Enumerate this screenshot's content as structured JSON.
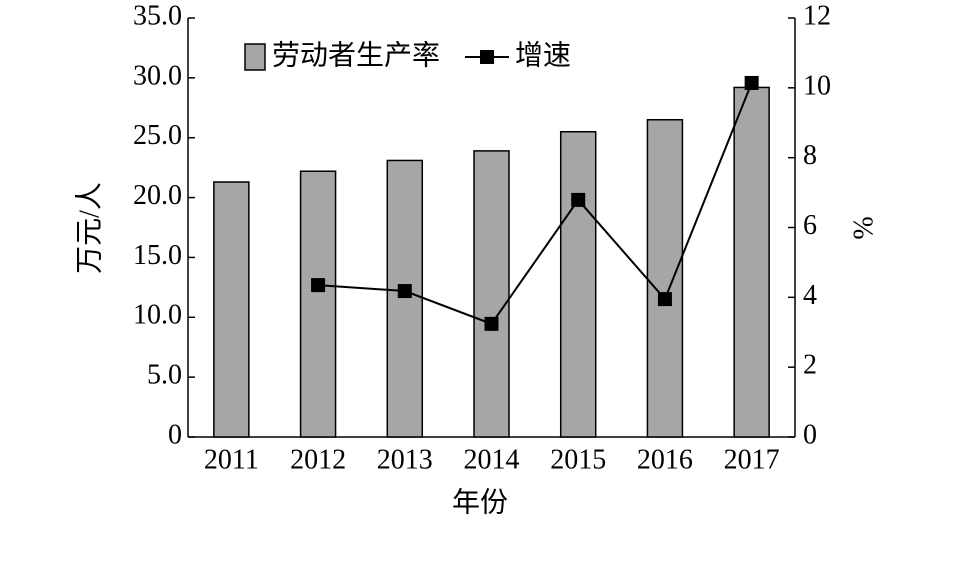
{
  "chart_data": {
    "type": "bar",
    "categories": [
      "2011",
      "2012",
      "2013",
      "2014",
      "2015",
      "2016",
      "2017"
    ],
    "series": [
      {
        "name": "劳动者生产率",
        "type": "bar",
        "color": "#a6a6a6",
        "values": [
          21.3,
          22.2,
          23.1,
          23.9,
          25.5,
          26.5,
          29.2
        ]
      },
      {
        "name": "增速",
        "type": "line",
        "color": "#000000",
        "axis": "y2",
        "values": [
          null,
          4.35,
          4.18,
          3.24,
          6.79,
          3.95,
          10.14
        ]
      }
    ],
    "ylim": [
      0,
      35
    ],
    "yticks": [
      0,
      {
        "value": 5,
        "label": "5.0"
      },
      {
        "value": 10,
        "label": "10.0"
      },
      {
        "value": 15,
        "label": "15.0"
      },
      {
        "value": 20,
        "label": "20.0"
      },
      {
        "value": 25,
        "label": "25.0"
      },
      {
        "value": 30,
        "label": "30.0"
      },
      {
        "value": 35,
        "label": "35.0"
      }
    ],
    "y2lim": [
      0,
      12
    ],
    "y2ticks": [
      0,
      2,
      4,
      6,
      8,
      10,
      12
    ],
    "ylabel": "万元/人",
    "y2label": "%",
    "xlabel": "年份",
    "legend": "top-left",
    "grid": false
  }
}
